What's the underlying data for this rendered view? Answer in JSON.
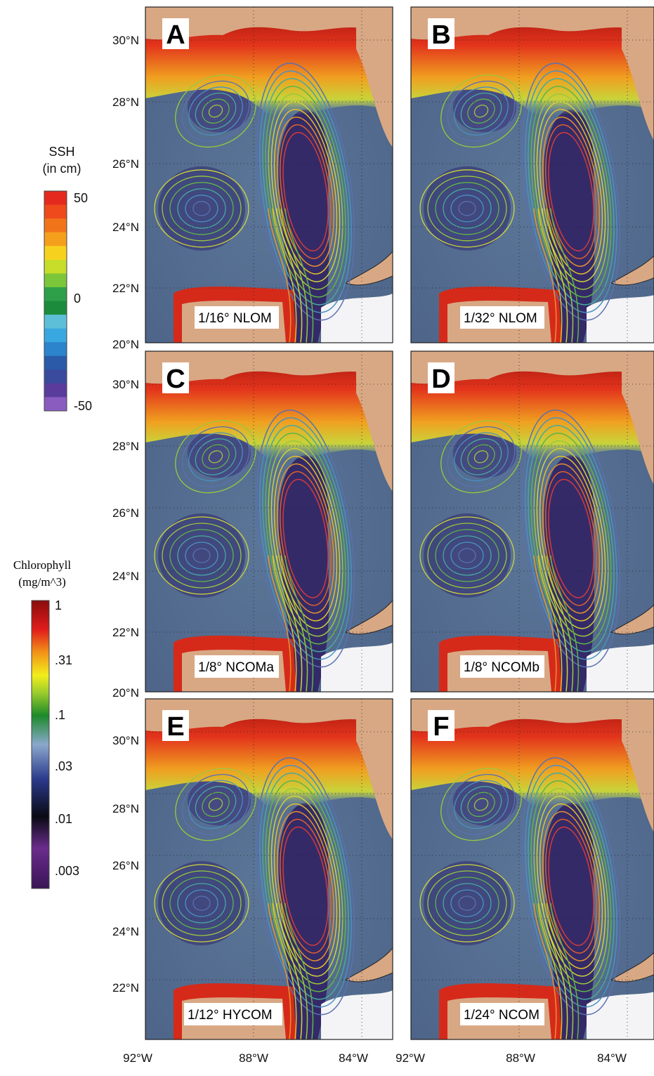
{
  "colorbars": [
    {
      "title": [
        "SSH",
        "(in cm)"
      ],
      "ticks": [
        "50",
        "0",
        "-50"
      ]
    },
    {
      "title": [
        "Chlorophyll",
        "(mg/m^3)"
      ],
      "ticks": [
        "1",
        ".31",
        ".1",
        ".03",
        ".01",
        ".003"
      ]
    }
  ],
  "panels": [
    {
      "letter": "A",
      "label": "1/16° NLOM"
    },
    {
      "letter": "B",
      "label": "1/32° NLOM"
    },
    {
      "letter": "C",
      "label": "1/8° NCOMa"
    },
    {
      "letter": "D",
      "label": "1/8° NCOMb"
    },
    {
      "letter": "E",
      "label": "1/12° HYCOM"
    },
    {
      "letter": "F",
      "label": "1/24° NCOM"
    }
  ],
  "lat_labels": [
    [
      "30°N",
      "28°N",
      "26°N",
      "24°N",
      "22°N",
      "20°N"
    ],
    [
      "30°N",
      "28°N",
      "26°N",
      "24°N",
      "22°N",
      "20°N"
    ],
    [
      "30°N",
      "28°N",
      "26°N",
      "24°N",
      "22°N"
    ]
  ],
  "lon_labels": [
    [
      "92°W",
      "88°W",
      "84°W"
    ],
    [
      "92°W",
      "88°W",
      "84°W"
    ]
  ]
}
